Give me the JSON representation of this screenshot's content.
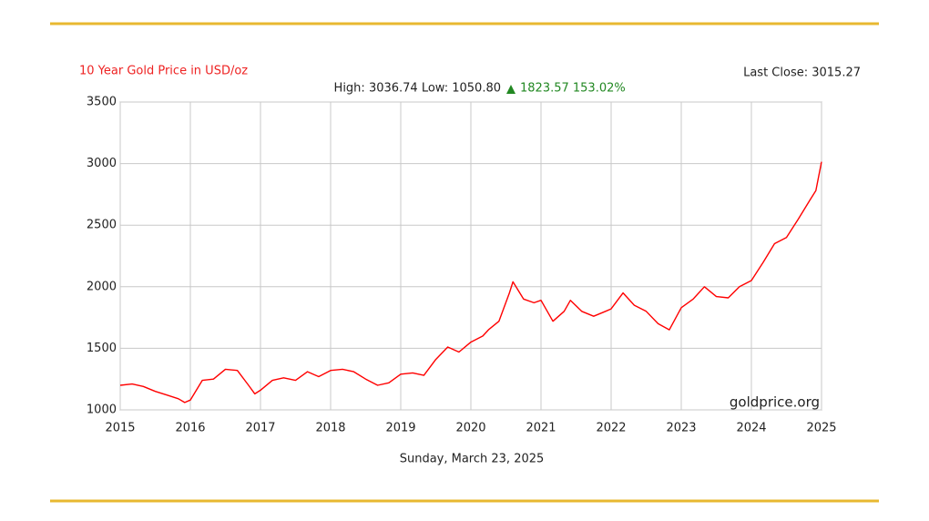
{
  "chart_data": {
    "type": "line",
    "title": "10 Year Gold Price in USD/oz",
    "last_close": "Last Close: 3015.27",
    "high_low": "High: 3036.74 Low: 1050.80",
    "change": "1823.57 153.02%",
    "source": "goldprice.org",
    "date": "Sunday, March 23, 2025",
    "x": [
      2015.0,
      2015.17,
      2015.33,
      2015.5,
      2015.67,
      2015.83,
      2015.92,
      2016.0,
      2016.17,
      2016.33,
      2016.5,
      2016.67,
      2016.83,
      2016.92,
      2017.0,
      2017.17,
      2017.33,
      2017.5,
      2017.67,
      2017.83,
      2018.0,
      2018.17,
      2018.33,
      2018.5,
      2018.67,
      2018.83,
      2019.0,
      2019.17,
      2019.33,
      2019.5,
      2019.67,
      2019.83,
      2020.0,
      2020.17,
      2020.25,
      2020.4,
      2020.55,
      2020.6,
      2020.75,
      2020.9,
      2021.0,
      2021.17,
      2021.33,
      2021.42,
      2021.58,
      2021.75,
      2021.92,
      2022.0,
      2022.17,
      2022.33,
      2022.5,
      2022.67,
      2022.83,
      2023.0,
      2023.17,
      2023.33,
      2023.5,
      2023.67,
      2023.83,
      2024.0,
      2024.17,
      2024.33,
      2024.5,
      2024.67,
      2024.83,
      2024.92,
      2025.0
    ],
    "series": [
      {
        "name": "Gold",
        "color": "#ff0000",
        "values": [
          1200,
          1210,
          1190,
          1150,
          1120,
          1090,
          1060,
          1080,
          1240,
          1250,
          1330,
          1320,
          1200,
          1130,
          1160,
          1240,
          1260,
          1240,
          1310,
          1270,
          1320,
          1330,
          1310,
          1250,
          1200,
          1220,
          1290,
          1300,
          1280,
          1410,
          1510,
          1470,
          1550,
          1600,
          1650,
          1720,
          1950,
          2040,
          1900,
          1870,
          1890,
          1720,
          1800,
          1890,
          1800,
          1760,
          1800,
          1820,
          1950,
          1850,
          1800,
          1700,
          1650,
          1830,
          1900,
          2000,
          1920,
          1910,
          2000,
          2050,
          2200,
          2350,
          2400,
          2550,
          2700,
          2780,
          3015
        ]
      }
    ],
    "xlim": [
      2015,
      2025
    ],
    "xticks": [
      2015,
      2016,
      2017,
      2018,
      2019,
      2020,
      2021,
      2022,
      2023,
      2024,
      2025
    ],
    "ylim": [
      1000,
      3500
    ],
    "yticks": [
      1000,
      1500,
      2000,
      2500,
      3000,
      3500
    ],
    "grid": true
  }
}
